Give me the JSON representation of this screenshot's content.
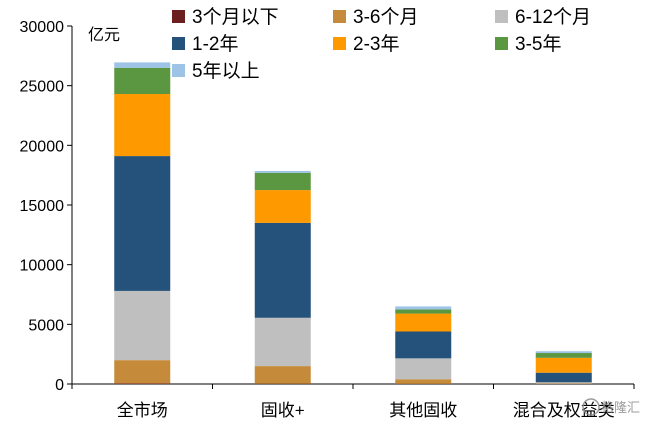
{
  "chart_data": {
    "type": "bar",
    "stacked": true,
    "unit": "亿元",
    "categories": [
      "全市场",
      "固收+",
      "其他固收",
      "混合及权益类"
    ],
    "ylim": [
      0,
      30000
    ],
    "yticks": [
      0,
      5000,
      10000,
      15000,
      20000,
      25000,
      30000
    ],
    "grid": false,
    "legend_position": "top",
    "series": [
      {
        "name": "3个月以下",
        "color": "#6b1f1f",
        "values": [
          50,
          20,
          10,
          5
        ]
      },
      {
        "name": "3-6个月",
        "color": "#c58a3a",
        "values": [
          1950,
          1480,
          390,
          50
        ]
      },
      {
        "name": "6-12个月",
        "color": "#bfbfbf",
        "values": [
          5800,
          4050,
          1750,
          90
        ]
      },
      {
        "name": "1-2年",
        "color": "#25527a",
        "values": [
          11300,
          7950,
          2250,
          800
        ]
      },
      {
        "name": "2-3年",
        "color": "#ff9900",
        "values": [
          5200,
          2750,
          1500,
          1250
        ]
      },
      {
        "name": "3-5年",
        "color": "#5b9640",
        "values": [
          2200,
          1450,
          350,
          400
        ]
      },
      {
        "name": "5年以上",
        "color": "#9dc3e6",
        "values": [
          450,
          150,
          250,
          150
        ]
      }
    ]
  },
  "watermark": {
    "text": "格隆汇"
  }
}
